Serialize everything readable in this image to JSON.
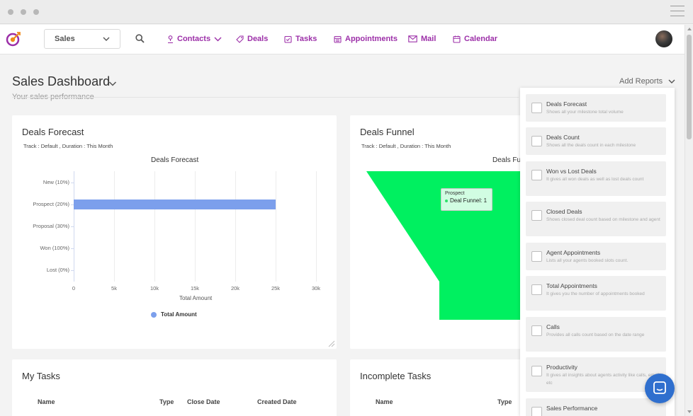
{
  "nav": {
    "module_select": "Sales",
    "items": [
      {
        "label": "Contacts",
        "icon": "person-icon"
      },
      {
        "label": "Deals",
        "icon": "tag-icon"
      },
      {
        "label": "Tasks",
        "icon": "task-icon"
      },
      {
        "label": "Appointments",
        "icon": "calendar-list-icon"
      },
      {
        "label": "Mail",
        "icon": "mail-icon"
      },
      {
        "label": "Calendar",
        "icon": "calendar-icon"
      }
    ]
  },
  "header": {
    "title": "Sales Dashboard",
    "subtitle": "Your sales performance",
    "add_reports": "Add Reports"
  },
  "deals_forecast": {
    "title": "Deals Forecast",
    "meta": "Track : Default ,  Duration : This Month"
  },
  "deals_funnel": {
    "title": "Deals Funnel",
    "meta": "Track : Default ,  Duration : This Month",
    "chart_title": "Deals Fu",
    "tooltip_title": "Prospect",
    "tooltip_value": "Deal Funnel: 1"
  },
  "my_tasks": {
    "title": "My Tasks",
    "columns": [
      "Name",
      "Type",
      "Close Date",
      "Created Date"
    ]
  },
  "incomplete_tasks": {
    "title": "Incomplete Tasks",
    "columns": [
      "Name",
      "Type"
    ]
  },
  "reports": [
    {
      "title": "Deals Forecast",
      "desc": "Shows all your milestone total volume"
    },
    {
      "title": "Deals Count",
      "desc": "Shows all the deals count in each milestone"
    },
    {
      "title": "Won vs Lost Deals",
      "desc": "It gives all won deals as well as lost deals count"
    },
    {
      "title": "Closed Deals",
      "desc": "Shows closed deal count based on milestone and agent"
    },
    {
      "title": "Agent Appointments",
      "desc": "Lists all your agents booked slots count."
    },
    {
      "title": "Total Appointments",
      "desc": "It gives you the number of appointments booked"
    },
    {
      "title": "Calls",
      "desc": "Provides all calls count based on the date range"
    },
    {
      "title": "Productivity",
      "desc": "It gives all insights about agents activity like calls, emails, etc"
    },
    {
      "title": "Sales Performance",
      "desc": ""
    }
  ],
  "colors": {
    "brand": "#9c2fa8",
    "bar": "#7c9fec",
    "funnel": "#00f060",
    "chat_button": "#2f6fce"
  },
  "chart_data": [
    {
      "type": "bar",
      "orientation": "horizontal",
      "title": "Deals Forecast",
      "categories": [
        "New (10%)",
        "Prospect (20%)",
        "Proposal (30%)",
        "Won (100%)",
        "Lost (0%)"
      ],
      "series": [
        {
          "name": "Total Amount",
          "values": [
            0,
            25000,
            0,
            0,
            0
          ]
        }
      ],
      "xlabel": "Total Amount",
      "ylabel": "",
      "xlim": [
        0,
        30000
      ],
      "x_ticks": [
        "0",
        "5k",
        "10k",
        "15k",
        "20k",
        "25k",
        "30k"
      ],
      "grid": true,
      "legend": "bottom-center"
    },
    {
      "type": "funnel",
      "title": "Deals Funnel",
      "categories": [
        "Prospect"
      ],
      "series": [
        {
          "name": "Deal Funnel",
          "values": [
            1
          ]
        }
      ]
    }
  ]
}
